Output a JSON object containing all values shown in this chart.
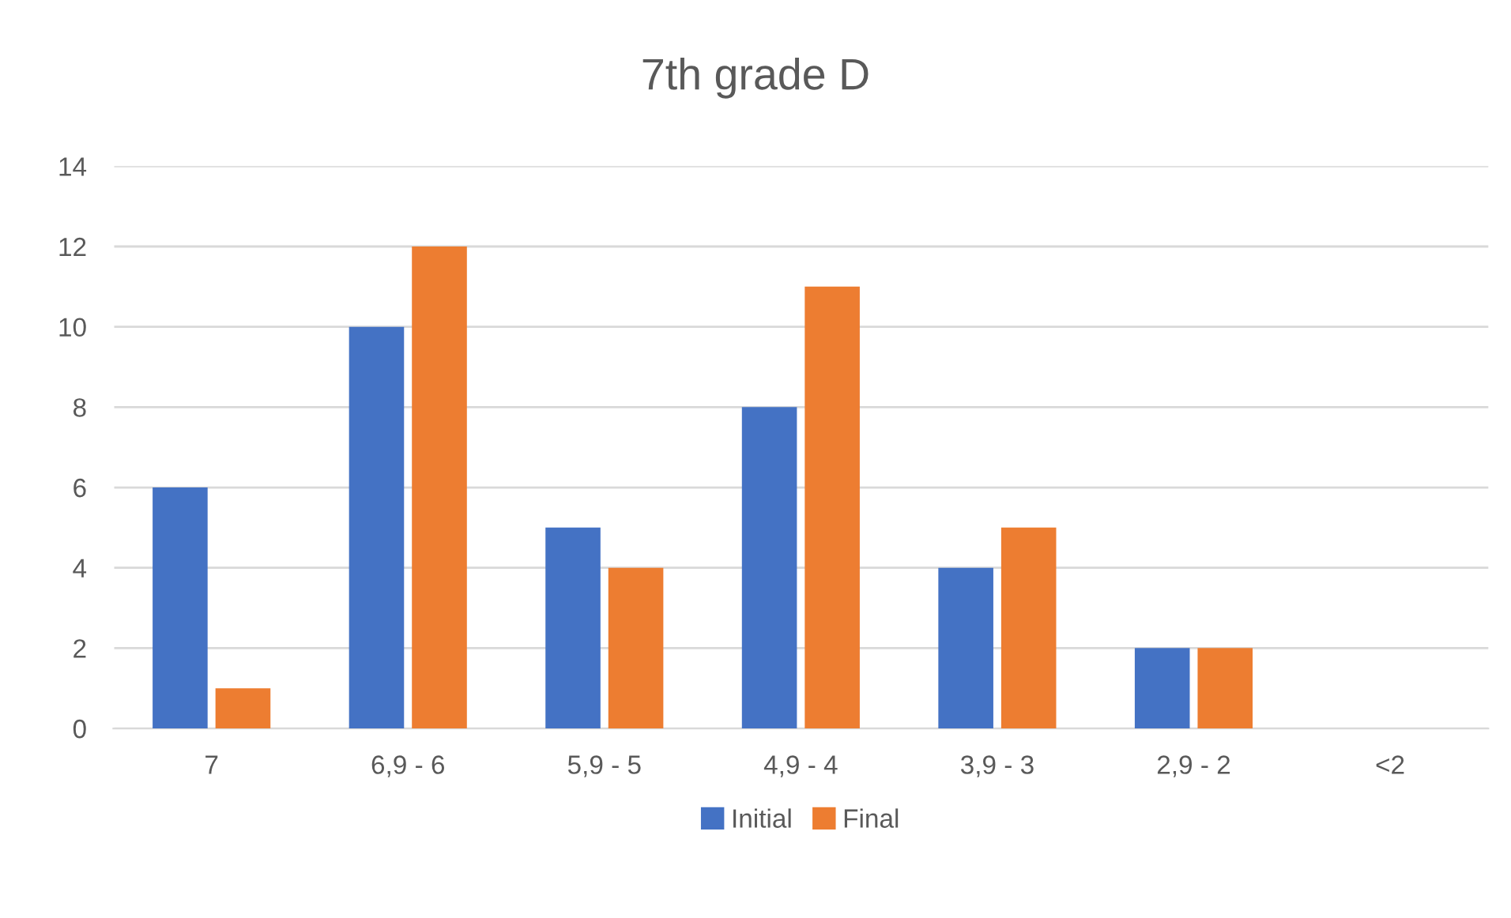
{
  "chart_data": {
    "type": "bar",
    "title": "7th grade D",
    "categories": [
      "7",
      "6,9 - 6",
      "5,9 - 5",
      "4,9 - 4",
      "3,9 - 3",
      "2,9 - 2",
      "<2"
    ],
    "series": [
      {
        "name": "Initial",
        "color": "#4472c4",
        "values": [
          6,
          10,
          5,
          8,
          4,
          2,
          0
        ]
      },
      {
        "name": "Final",
        "color": "#ed7d31",
        "values": [
          1,
          12,
          4,
          11,
          5,
          2,
          0
        ]
      }
    ],
    "ylim": [
      0,
      14
    ],
    "yticks": [
      0,
      2,
      4,
      6,
      8,
      10,
      12,
      14
    ],
    "grid": "y",
    "legend": "bottom"
  }
}
